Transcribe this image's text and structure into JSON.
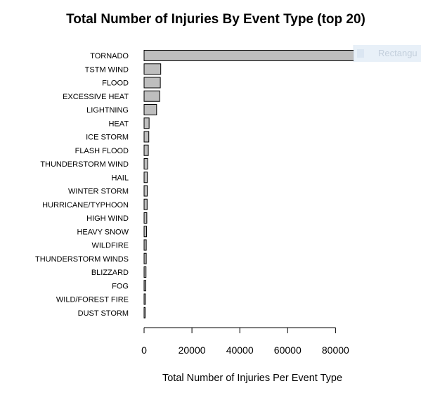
{
  "chart_data": {
    "type": "bar",
    "orientation": "horizontal",
    "title": "Total Number of Injuries By Event Type (top 20)",
    "xlabel": "Total Number of Injuries Per Event Type",
    "ylabel": "",
    "xlim": [
      0,
      91346
    ],
    "xticks": [
      0,
      20000,
      40000,
      60000,
      80000
    ],
    "xtick_labels": [
      "0",
      "20000",
      "40000",
      "60000",
      "80000"
    ],
    "grid": false,
    "bar_color": "#bebebe",
    "categories": [
      "TORNADO",
      "TSTM WIND",
      "FLOOD",
      "EXCESSIVE HEAT",
      "LIGHTNING",
      "HEAT",
      "ICE STORM",
      "FLASH FLOOD",
      "THUNDERSTORM WIND",
      "HAIL",
      "WINTER STORM",
      "HURRICANE/TYPHOON",
      "HIGH WIND",
      "HEAVY SNOW",
      "WILDFIRE",
      "THUNDERSTORM WINDS",
      "BLIZZARD",
      "FOG",
      "WILD/FOREST FIRE",
      "DUST STORM"
    ],
    "values": [
      91346,
      6957,
      6789,
      6525,
      5230,
      2100,
      1975,
      1777,
      1488,
      1361,
      1321,
      1275,
      1137,
      1021,
      911,
      908,
      805,
      734,
      545,
      440
    ]
  },
  "overlay": {
    "text": "Rectangu"
  }
}
